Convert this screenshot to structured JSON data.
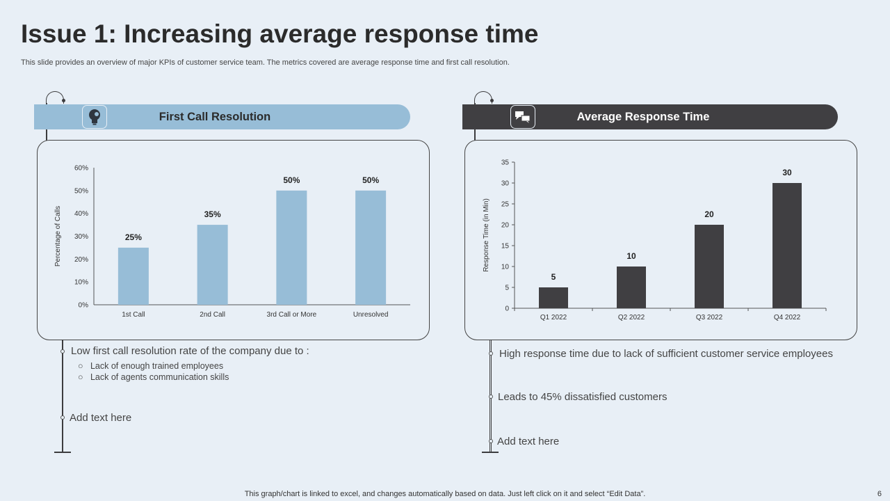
{
  "title": "Issue 1: Increasing average response time",
  "subtitle": "This slide provides an overview of major KPIs of customer service team. The metrics covered are average response time and first call resolution.",
  "left_panel": {
    "heading": "First Call Resolution",
    "icon": "lightbulb-gear-icon",
    "band_color": "#97bdd7",
    "bullets": [
      {
        "text": "Low first call resolution rate of the company due to :",
        "sub": [
          "Lack of enough  trained employees",
          "Lack of agents communication skills"
        ]
      },
      {
        "text": "Add text here"
      }
    ]
  },
  "right_panel": {
    "heading": "Average Response Time",
    "icon": "chat-bubbles-icon",
    "band_color": "#403f42",
    "bullets": [
      {
        "text": "High response time due to lack of sufficient customer service employees"
      },
      {
        "text": "Leads to 45% dissatisfied customers"
      },
      {
        "text": "Add text here"
      }
    ]
  },
  "chart_data": [
    {
      "type": "bar",
      "categories": [
        "1st Call",
        "2nd Call",
        "3rd Call or More",
        "Unresolved"
      ],
      "values": [
        25,
        35,
        50,
        50
      ],
      "data_labels": [
        "25%",
        "35%",
        "50%",
        "50%"
      ],
      "ylabel": "Percentage of Calls",
      "ylim": [
        0,
        60
      ],
      "yticks": [
        "0%",
        "10%",
        "20%",
        "30%",
        "40%",
        "50%",
        "60%"
      ],
      "color": "#97bdd7",
      "grid": false
    },
    {
      "type": "bar",
      "categories": [
        "Q1 2022",
        "Q2 2022",
        "Q3 2022",
        "Q4 2022"
      ],
      "values": [
        5,
        10,
        20,
        30
      ],
      "data_labels": [
        "5",
        "10",
        "20",
        "30"
      ],
      "ylabel": "Response Time (in Min)",
      "ylim": [
        0,
        35
      ],
      "yticks": [
        "0",
        "5",
        "10",
        "15",
        "20",
        "25",
        "30",
        "35"
      ],
      "color": "#403f42",
      "grid": false
    }
  ],
  "footer": "This graph/chart is linked to excel,  and changes automatically based on data. Just left click on it and select “Edit Data”.",
  "page_number": "6"
}
